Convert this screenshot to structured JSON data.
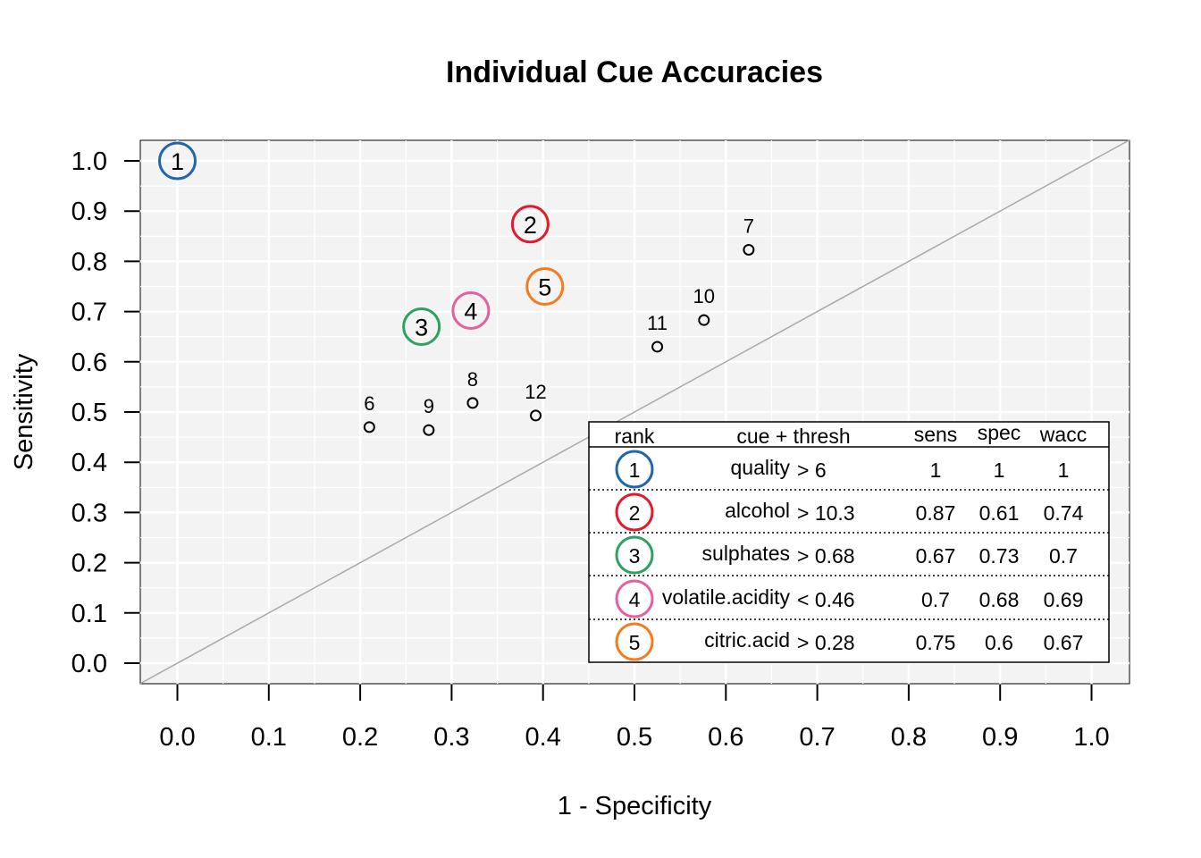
{
  "chart_data": {
    "type": "scatter",
    "title": "Individual Cue Accuracies",
    "xlabel": "1 - Specificity",
    "ylabel": "Sensitivity",
    "xlim": [
      0,
      1
    ],
    "ylim": [
      0,
      1
    ],
    "x_ticks": [
      "0.0",
      "0.1",
      "0.2",
      "0.3",
      "0.4",
      "0.5",
      "0.6",
      "0.7",
      "0.8",
      "0.9",
      "1.0"
    ],
    "y_ticks": [
      "0.0",
      "0.1",
      "0.2",
      "0.3",
      "0.4",
      "0.5",
      "0.6",
      "0.7",
      "0.8",
      "0.9",
      "1.0"
    ],
    "grid": true,
    "reference_line": "diagonal",
    "ranked_points": [
      {
        "rank": "1",
        "x": 0.0,
        "y": 1.0,
        "color": "#2166ac"
      },
      {
        "rank": "2",
        "x": 0.386,
        "y": 0.874,
        "color": "#e41a2c"
      },
      {
        "rank": "3",
        "x": 0.267,
        "y": 0.67,
        "color": "#2ca25f"
      },
      {
        "rank": "4",
        "x": 0.321,
        "y": 0.702,
        "color": "#e7609e"
      },
      {
        "rank": "5",
        "x": 0.402,
        "y": 0.75,
        "color": "#f47b20"
      }
    ],
    "other_points": [
      {
        "label": "6",
        "x": 0.21,
        "y": 0.47
      },
      {
        "label": "7",
        "x": 0.625,
        "y": 0.823
      },
      {
        "label": "8",
        "x": 0.323,
        "y": 0.518
      },
      {
        "label": "9",
        "x": 0.275,
        "y": 0.464
      },
      {
        "label": "10",
        "x": 0.576,
        "y": 0.683
      },
      {
        "label": "11",
        "x": 0.525,
        "y": 0.63
      },
      {
        "label": "12",
        "x": 0.392,
        "y": 0.493
      }
    ],
    "legend": {
      "placement": "bottom-right",
      "headers": {
        "rank": "rank",
        "cue": "cue + thresh",
        "sens": "sens",
        "spec": "spec",
        "wacc": "wacc"
      },
      "rows": [
        {
          "rank": "1",
          "cue": "quality",
          "op": "> 6",
          "sens": "1",
          "spec": "1",
          "wacc": "1",
          "color": "#2166ac"
        },
        {
          "rank": "2",
          "cue": "alcohol",
          "op": "> 10.3",
          "sens": "0.87",
          "spec": "0.61",
          "wacc": "0.74",
          "color": "#e41a2c"
        },
        {
          "rank": "3",
          "cue": "sulphates",
          "op": "> 0.68",
          "sens": "0.67",
          "spec": "0.73",
          "wacc": "0.7",
          "color": "#2ca25f"
        },
        {
          "rank": "4",
          "cue": "volatile.acidity",
          "op": "< 0.46",
          "sens": "0.7",
          "spec": "0.68",
          "wacc": "0.69",
          "color": "#e7609e"
        },
        {
          "rank": "5",
          "cue": "citric.acid",
          "op": "> 0.28",
          "sens": "0.75",
          "spec": "0.6",
          "wacc": "0.67",
          "color": "#f47b20"
        }
      ]
    }
  }
}
